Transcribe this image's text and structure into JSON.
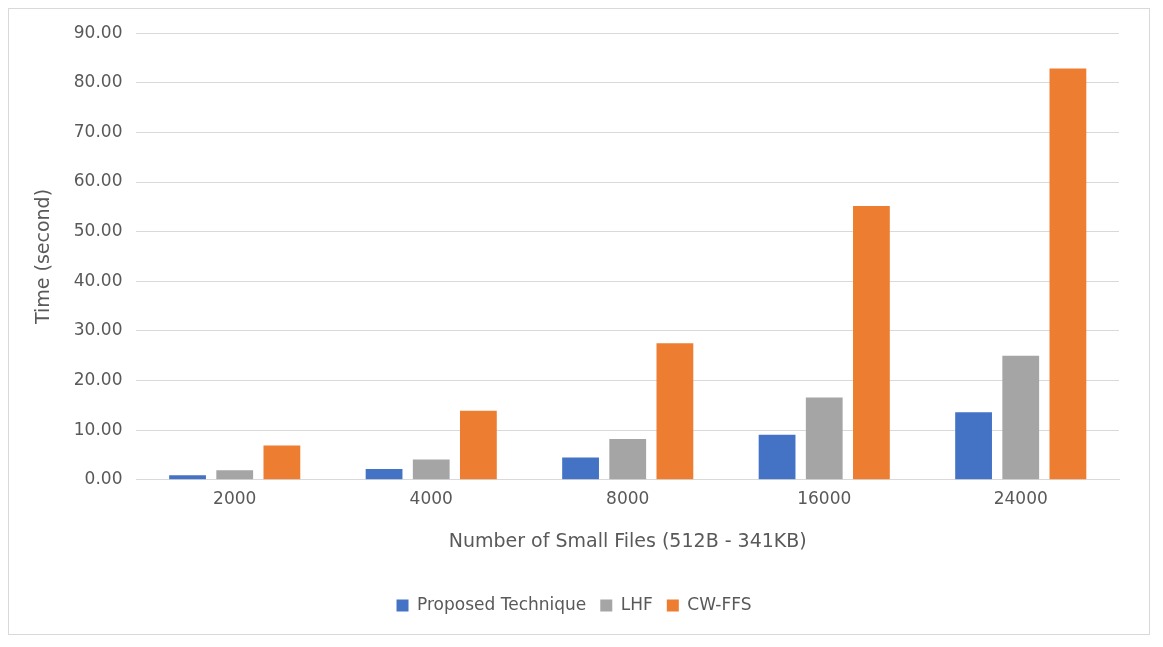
{
  "chart_data": {
    "type": "bar",
    "xlabel": "Number of Small Files (512B - 341KB)",
    "ylabel": "Time (second)",
    "categories": [
      "2000",
      "4000",
      "8000",
      "16000",
      "24000"
    ],
    "series": [
      {
        "name": "Proposed Technique",
        "color": "#4472c4",
        "values": [
          0.9,
          2.2,
          4.5,
          9.1,
          13.6
        ]
      },
      {
        "name": "LHF",
        "color": "#a5a5a5",
        "values": [
          1.9,
          4.1,
          8.2,
          16.6,
          25.0
        ]
      },
      {
        "name": "CW-FFS",
        "color": "#ed7d31",
        "values": [
          6.9,
          13.9,
          27.5,
          55.2,
          82.9
        ]
      }
    ],
    "ylim": [
      0,
      90
    ],
    "yticks": [
      {
        "value": 0,
        "label": "0.00"
      },
      {
        "value": 10,
        "label": "10.00"
      },
      {
        "value": 20,
        "label": "20.00"
      },
      {
        "value": 30,
        "label": "30.00"
      },
      {
        "value": 40,
        "label": "40.00"
      },
      {
        "value": 50,
        "label": "50.00"
      },
      {
        "value": 60,
        "label": "60.00"
      },
      {
        "value": 70,
        "label": "70.00"
      },
      {
        "value": 80,
        "label": "80.00"
      },
      {
        "value": 90,
        "label": "90.00"
      }
    ],
    "grid": "y",
    "legend": "bottom"
  }
}
